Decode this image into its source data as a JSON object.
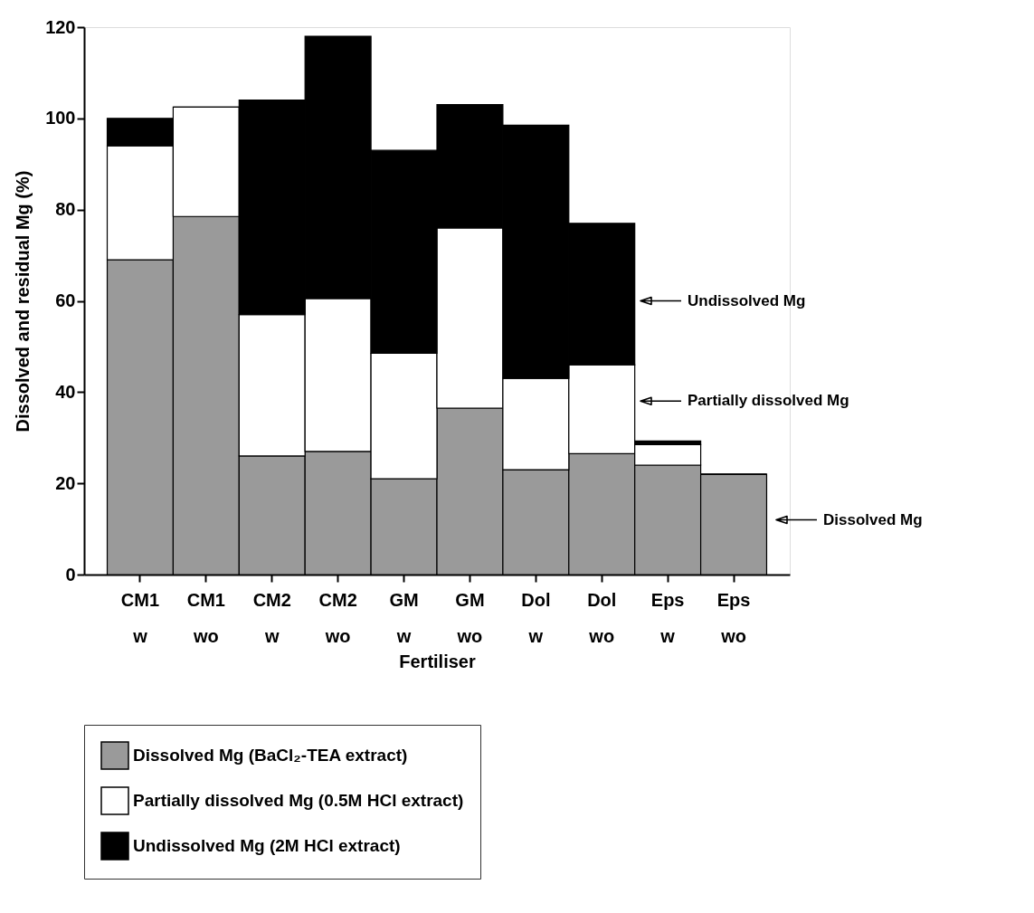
{
  "chart_data": {
    "type": "bar",
    "stacked": true,
    "xlabel": "Fertiliser",
    "ylabel": "Dissolved and residual Mg (%)",
    "categories": [
      "CM1\nw",
      "CM1\nwo",
      "CM2\nw",
      "CM2\nwo",
      "GM\nw",
      "GM\nwo",
      "Dol\nw",
      "Dol\nwo",
      "Eps\nw",
      "Eps\nwo"
    ],
    "series": [
      {
        "name": "Dissolved Mg (BaCl₂-TEA extract)",
        "color": "#9a9a9a",
        "values": [
          69,
          78.5,
          26,
          27,
          21,
          36.5,
          23,
          26.5,
          24,
          22
        ]
      },
      {
        "name": "Partially dissolved Mg (0.5M HCl extract)",
        "color": "#ffffff",
        "values": [
          25,
          24,
          31,
          33.5,
          27.5,
          39.5,
          20,
          19.5,
          4.5,
          0
        ]
      },
      {
        "name": "Undissolved Mg (2M HCl extract)",
        "color": "#000000",
        "values": [
          6,
          0,
          47,
          57.5,
          44.5,
          27,
          55.5,
          31,
          0.8,
          0
        ]
      }
    ],
    "ylim": [
      0,
      120
    ],
    "yticks": [
      0,
      20,
      40,
      60,
      80,
      100,
      120
    ],
    "grid": false,
    "legend": "bottom",
    "annotations": [
      "Undissolved Mg",
      "Partially dissolved Mg",
      "Dissolved Mg"
    ]
  }
}
